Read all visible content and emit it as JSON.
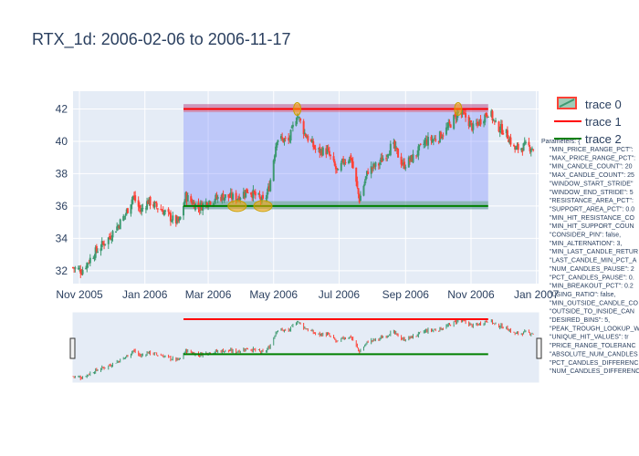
{
  "title": "RTX_1d: 2006-02-06 to 2006-11-17",
  "legend": [
    "trace 0",
    "trace 1",
    "trace 2"
  ],
  "params_title": "Parameters: {",
  "params": [
    "\"MIN_PRICE_RANGE_PCT\":",
    "\"MAX_PRICE_RANGE_PCT\":",
    "\"MIN_CANDLE_COUNT\": 20",
    "\"MAX_CANDLE_COUNT\": 25",
    "\"WINDOW_START_STRIDE\"",
    "\"WINDOW_END_STRIDE\": 5",
    "\"RESISTANCE_AREA_PCT\":",
    "\"SUPPORT_AREA_PCT\": 0.0",
    "\"MIN_HIT_RESISTANCE_CO",
    "\"MIN_HIT_SUPPORT_COUN",
    "\"CONSIDER_PIN\": false,",
    "\"MIN_ALTERNATION\": 3,",
    "\"MIN_LAST_CANDLE_RETUR",
    "\"LAST_CANDLE_MIN_PCT_A",
    "\"NUM_CANDLES_PAUSE\": 2",
    "\"PCT_CANDLES_PAUSE\": 0.",
    "\"MIN_BREAKOUT_PCT\": 0.2",
    "\"USING_RATIO\": false,",
    "\"MIN_OUTSIDE_CANDLE_CO",
    "\"OUTSIDE_TO_INSIDE_CAN",
    "\"DESIRED_BINS\": 5,",
    "\"PEAK_TROUGH_LOOKUP_W",
    "\"UNIQUE_HIT_VALUES\": tr",
    "\"PRICE_RANGE_TOLERANC",
    "\"ABSOLUTE_NUM_CANDLES",
    "\"PCT_CANDLES_DIFFERENC",
    "\"NUM_CANDLES_DIFFERENC"
  ],
  "colors": {
    "increasing": "#3d9970",
    "decreasing": "#ff4136",
    "resistance": "#ff0000",
    "support": "#008000",
    "box": "#6473ff",
    "hit": "#ffa500",
    "plot_bg": "#e5ecf6"
  },
  "chart_data": {
    "type": "candlestick",
    "xlim": [
      "2005-10-26",
      "2007-01-03"
    ],
    "ylim": [
      31.2,
      43.1
    ],
    "x_ticks": [
      "Nov 2005",
      "Jan 2006",
      "Mar 2006",
      "May 2006",
      "Jul 2006",
      "Sep 2006",
      "Nov 2006",
      "Jan 2007"
    ],
    "y_ticks": [
      "32",
      "34",
      "36",
      "38",
      "40",
      "42"
    ],
    "series": [
      {
        "name": "trace 0",
        "type": "candlestick",
        "anchors": [
          [
            "2005-10-26",
            32.2
          ],
          [
            "2005-11-03",
            32.0
          ],
          [
            "2005-11-15",
            33.1
          ],
          [
            "2005-11-28",
            34.0
          ],
          [
            "2005-12-07",
            34.8
          ],
          [
            "2005-12-14",
            35.5
          ],
          [
            "2005-12-21",
            36.6
          ],
          [
            "2005-12-28",
            35.7
          ],
          [
            "2006-01-04",
            36.3
          ],
          [
            "2006-01-18",
            35.7
          ],
          [
            "2006-01-28",
            35.1
          ],
          [
            "2006-02-02",
            35.0
          ],
          [
            "2006-02-08",
            36.6
          ],
          [
            "2006-02-20",
            35.9
          ],
          [
            "2006-03-01",
            36.3
          ],
          [
            "2006-03-15",
            36.6
          ],
          [
            "2006-03-28",
            36.5
          ],
          [
            "2006-04-07",
            37.0
          ],
          [
            "2006-04-15",
            36.6
          ],
          [
            "2006-04-22",
            36.2
          ],
          [
            "2006-04-27",
            37.2
          ],
          [
            "2006-05-04",
            40.2
          ],
          [
            "2006-05-15",
            40.0
          ],
          [
            "2006-05-23",
            41.7
          ],
          [
            "2006-05-30",
            40.5
          ],
          [
            "2006-06-10",
            39.4
          ],
          [
            "2006-06-20",
            39.4
          ],
          [
            "2006-06-30",
            38.0
          ],
          [
            "2006-07-05",
            38.8
          ],
          [
            "2006-07-12",
            39.0
          ],
          [
            "2006-07-20",
            36.4
          ],
          [
            "2006-07-28",
            38.2
          ],
          [
            "2006-08-07",
            38.6
          ],
          [
            "2006-08-20",
            39.8
          ],
          [
            "2006-08-30",
            38.5
          ],
          [
            "2006-09-08",
            39.0
          ],
          [
            "2006-09-20",
            40.0
          ],
          [
            "2006-10-01",
            40.2
          ],
          [
            "2006-10-10",
            40.8
          ],
          [
            "2006-10-20",
            41.8
          ],
          [
            "2006-10-27",
            41.5
          ],
          [
            "2006-11-03",
            40.8
          ],
          [
            "2006-11-10",
            41.3
          ],
          [
            "2006-11-18",
            41.9
          ],
          [
            "2006-11-24",
            41.0
          ],
          [
            "2006-12-03",
            40.6
          ],
          [
            "2006-12-12",
            39.5
          ],
          [
            "2006-12-22",
            39.7
          ],
          [
            "2006-12-29",
            39.6
          ]
        ]
      },
      {
        "name": "trace 1",
        "type": "line",
        "x": [
          "2006-02-06",
          "2006-11-17"
        ],
        "y": [
          42.0,
          42.0
        ]
      },
      {
        "name": "trace 2",
        "type": "line",
        "x": [
          "2006-02-06",
          "2006-11-17"
        ],
        "y": [
          36.0,
          36.0
        ]
      }
    ],
    "resistance_band": [
      41.8,
      42.3
    ],
    "support_band": [
      35.8,
      36.3
    ],
    "pattern_box": {
      "x": [
        "2006-02-06",
        "2006-11-17"
      ],
      "y": [
        35.8,
        42.3
      ]
    },
    "hits": [
      {
        "x": "2006-03-28",
        "y": 36.0
      },
      {
        "x": "2006-04-21",
        "y": 36.0
      },
      {
        "x": "2006-05-23",
        "y": 42.0
      },
      {
        "x": "2006-10-20",
        "y": 42.0
      }
    ]
  }
}
